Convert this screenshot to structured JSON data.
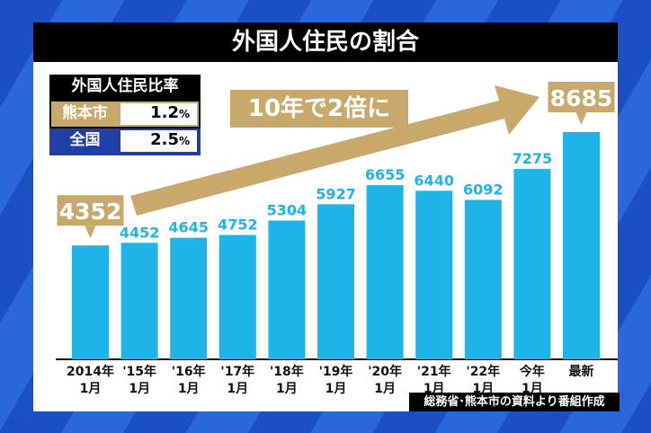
{
  "chart_data": {
    "type": "bar",
    "title": "外国人住民の割合",
    "categories": [
      [
        "2014年",
        "1月"
      ],
      [
        "'15年",
        "1月"
      ],
      [
        "'16年",
        "1月"
      ],
      [
        "'17年",
        "1月"
      ],
      [
        "'18年",
        "1月"
      ],
      [
        "'19年",
        "1月"
      ],
      [
        "'20年",
        "1月"
      ],
      [
        "'21年",
        "1月"
      ],
      [
        "'22年",
        "1月"
      ],
      [
        "今年",
        "1月"
      ],
      [
        "最新",
        ""
      ]
    ],
    "values": [
      4352,
      4452,
      4645,
      4752,
      5304,
      5927,
      6655,
      6440,
      6092,
      7275,
      8685
    ],
    "highlighted": [
      0,
      10
    ],
    "annotation": "10年で2倍に",
    "bar_color": "#1eb4e8",
    "highlight_color": "#c9a86b",
    "grid": false
  },
  "legend": {
    "header": "外国人住民比率",
    "rows": [
      {
        "name": "熊本市",
        "value": "1.2",
        "unit": "%",
        "color": "#c9a86b"
      },
      {
        "name": "全国",
        "value": "2.5",
        "unit": "%",
        "color": "#1f3ea8"
      }
    ]
  },
  "source": "総務省･熊本市の資料より番組作成"
}
